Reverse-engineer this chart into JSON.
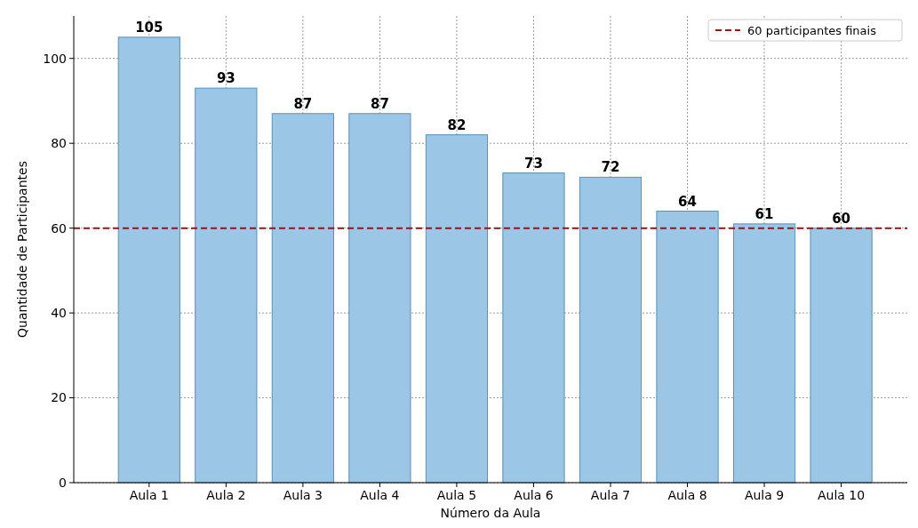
{
  "chart_data": {
    "type": "bar",
    "xlabel": "Número da Aula",
    "ylabel": "Quantidade de Participantes",
    "categories": [
      "Aula 1",
      "Aula 2",
      "Aula 3",
      "Aula 4",
      "Aula 5",
      "Aula 6",
      "Aula 7",
      "Aula 8",
      "Aula 9",
      "Aula 10"
    ],
    "values": [
      105,
      93,
      87,
      87,
      82,
      73,
      72,
      64,
      61,
      60
    ],
    "color": "#9bc6e5",
    "ylim": [
      0,
      110
    ],
    "yticks": [
      0,
      20,
      40,
      60,
      80,
      100
    ],
    "grid": true,
    "data_labels": true,
    "legend": "top right",
    "ref_lines": [
      {
        "axis": "y",
        "value": 60,
        "label": "60 participantes finais",
        "color": "#8b1a1a",
        "line_style": "dashed"
      }
    ]
  }
}
